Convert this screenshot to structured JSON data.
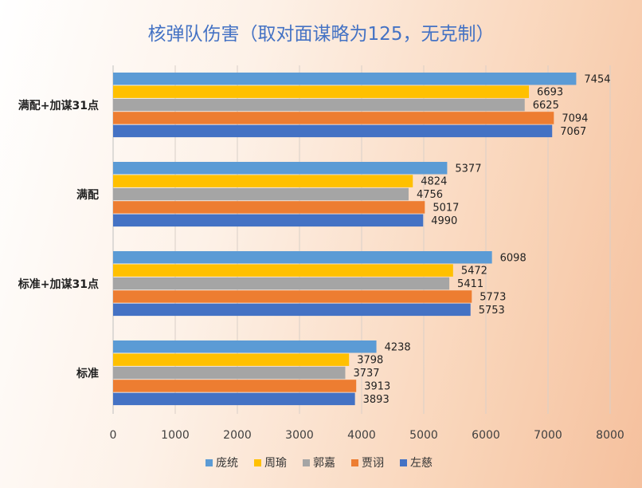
{
  "chart_data": {
    "type": "bar",
    "orientation": "horizontal",
    "title": "核弹队伤害（取对面谋略为125，无克制）",
    "categories": [
      "满配+加谋31点",
      "满配",
      "标准+加谋31点",
      "标准"
    ],
    "series": [
      {
        "name": "庞统",
        "color": "#5B9BD5",
        "values": [
          7454,
          5377,
          6098,
          4238
        ]
      },
      {
        "name": "周瑜",
        "color": "#FFC000",
        "values": [
          6693,
          4824,
          5472,
          3798
        ]
      },
      {
        "name": "郭嘉",
        "color": "#A5A5A5",
        "values": [
          6625,
          4756,
          5411,
          3737
        ]
      },
      {
        "name": "贾诩",
        "color": "#ED7D31",
        "values": [
          7094,
          5017,
          5773,
          3913
        ]
      },
      {
        "name": "左慈",
        "color": "#4472C4",
        "values": [
          7067,
          4990,
          5753,
          3893
        ]
      }
    ],
    "xlim": [
      0,
      8000
    ],
    "xticks": [
      0,
      1000,
      2000,
      3000,
      4000,
      5000,
      6000,
      7000,
      8000
    ],
    "grid": true,
    "legend_position": "bottom"
  }
}
